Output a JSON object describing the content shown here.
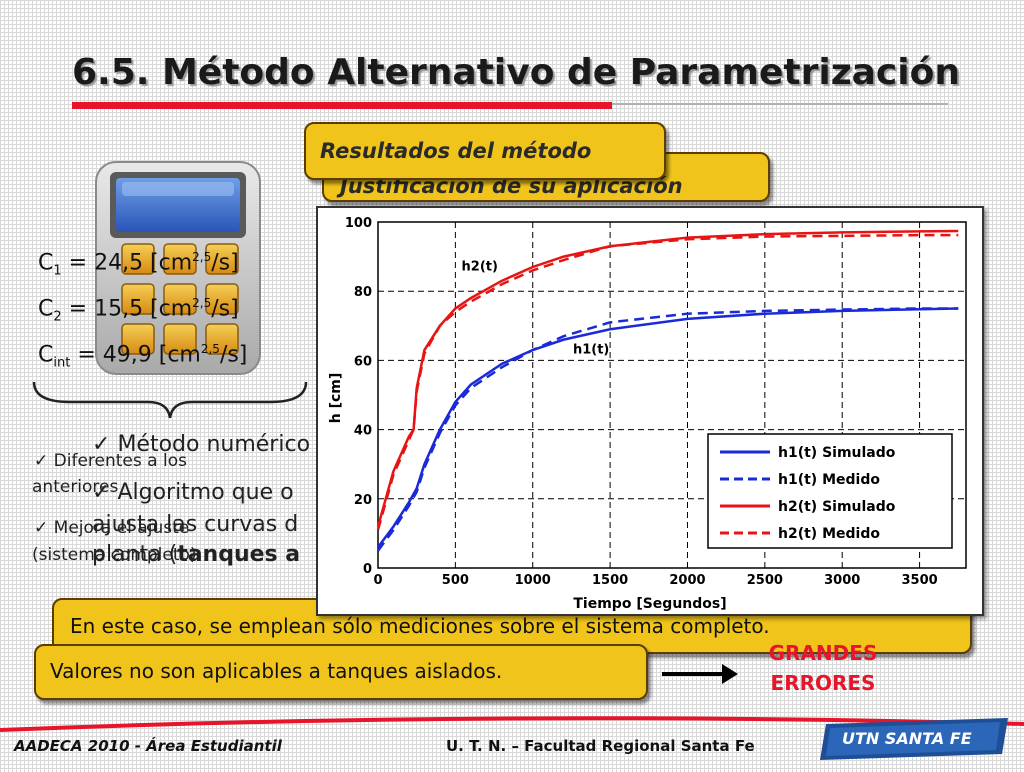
{
  "slide": {
    "title": "6.5. Método Alternativo de Parametrización",
    "tab_front": "Resultados del método",
    "tab_back": "Justificación de su aplicación"
  },
  "coefficients": [
    {
      "name": "C",
      "sub": "1",
      "value": "= 24,5 [cm",
      "exp": "2,5",
      "unit": "/s]"
    },
    {
      "name": "C",
      "sub": "2",
      "value": "= 15,5 [cm",
      "exp": "2,5",
      "unit": "/s]"
    },
    {
      "name": "C",
      "sub": "int",
      "value": "= 49,9 [cm",
      "exp": "2,5",
      "unit": "/s]"
    }
  ],
  "bullets_small": [
    "Diferentes a los",
    "anteriores",
    "Mejora el ajuste",
    "(sistema completo)."
  ],
  "bullets_large": [
    "Método numérico",
    "Algoritmo que o",
    "ajusta las curvas d",
    "planta (",
    "tanques a"
  ],
  "notes": {
    "measurements": "En este caso, se emplean sólo mediciones sobre el sistema completo.",
    "not_applicable": "Valores no son aplicables a tanques aislados.",
    "errors_line1": "GRANDES",
    "errors_line2": "ERRORES"
  },
  "footer": {
    "left": "AADECA 2010 - Área Estudiantil",
    "right": "U. T. N. – Facultad Regional Santa Fe",
    "logo": "UTN SANTA FE"
  },
  "colors": {
    "accent_red": "#e8142a",
    "gold": "#f0c41a",
    "series_blue": "#1a2ad8",
    "series_red": "#e81414",
    "logo_blue": "#1e4f96"
  },
  "chart_data": {
    "type": "line",
    "xlabel": "Tiempo [Segundos]",
    "ylabel": "h [cm]",
    "xlim": [
      0,
      3800
    ],
    "ylim": [
      0,
      100
    ],
    "xticks": [
      0,
      500,
      1000,
      1500,
      2000,
      2500,
      3000,
      3500
    ],
    "yticks": [
      0,
      20,
      40,
      60,
      80,
      100
    ],
    "grid": true,
    "legend_position": "bottom-right",
    "annotations": [
      {
        "text": "h2(t)",
        "x": 540,
        "y": 86
      },
      {
        "text": "h1(t)",
        "x": 1260,
        "y": 62
      }
    ],
    "series": [
      {
        "name": "h1(t) Simulado",
        "color": "#1a2ad8",
        "dash": false,
        "x": [
          0,
          100,
          200,
          250,
          300,
          400,
          500,
          600,
          800,
          1000,
          1200,
          1500,
          2000,
          2500,
          3000,
          3500,
          3750
        ],
        "y": [
          6,
          12,
          19,
          23,
          30,
          40,
          48,
          53,
          59,
          63,
          66,
          69,
          72,
          73.5,
          74.3,
          74.8,
          75
        ]
      },
      {
        "name": "h1(t) Medido",
        "color": "#1a2ad8",
        "dash": true,
        "x": [
          0,
          100,
          200,
          250,
          300,
          400,
          500,
          600,
          800,
          1000,
          1200,
          1500,
          2000,
          2500,
          3000,
          3500,
          3750
        ],
        "y": [
          5,
          11,
          18,
          22,
          29,
          39,
          47,
          52,
          58,
          63,
          67,
          71,
          73.5,
          74.3,
          74.7,
          75,
          75
        ]
      },
      {
        "name": "h2(t) Simulado",
        "color": "#e81414",
        "dash": false,
        "x": [
          0,
          100,
          200,
          230,
          250,
          300,
          400,
          500,
          600,
          800,
          1000,
          1200,
          1500,
          2000,
          2500,
          3000,
          3500,
          3750
        ],
        "y": [
          12,
          28,
          38,
          40,
          52,
          63,
          70,
          75,
          78,
          83,
          87,
          90,
          93,
          95.5,
          96.5,
          97,
          97.3,
          97.4
        ]
      },
      {
        "name": "h2(t) Medido",
        "color": "#e81414",
        "dash": true,
        "x": [
          0,
          100,
          200,
          230,
          250,
          300,
          400,
          500,
          600,
          800,
          1000,
          1200,
          1500,
          2000,
          2500,
          3000,
          3500,
          3750
        ],
        "y": [
          11,
          27,
          37,
          40,
          51,
          62,
          70,
          74,
          77,
          82,
          86,
          89,
          93,
          95,
          95.8,
          96,
          96.2,
          96.2
        ]
      }
    ]
  }
}
